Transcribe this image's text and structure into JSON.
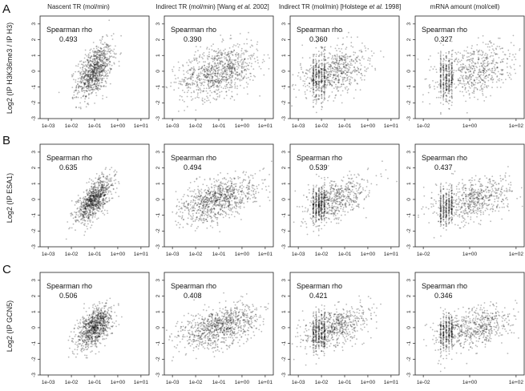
{
  "figure": {
    "column_titles": [
      "Nascent TR (mol/min)",
      "Indirect TR (mol/min) [Wang et al. 2002]",
      "Indirect TR (mol/min) [Holstege et al. 1998]",
      "mRNA amount (mol/cell)"
    ],
    "row_letters": [
      "A",
      "B",
      "C"
    ],
    "row_ylabels": [
      "Log2 (IP H3K36me3 / IP H3)",
      "Log2 (IP ESA1)",
      "Log2 (IP GCN5)"
    ],
    "annotation_label": "Spearman rho"
  },
  "chart_data": [
    {
      "type": "scatter",
      "row": "A",
      "column": "Nascent TR (mol/min)",
      "ylabel": "Log2 (IP H3K36me3 / IP H3)",
      "x_scale": "log",
      "x_ticks": [
        "1e-03",
        "1e-02",
        "1e-01",
        "1e+00",
        "1e+01"
      ],
      "ylim": [
        -3,
        3.5
      ],
      "y_ticks": [
        -3,
        -2,
        -1,
        0,
        1,
        2,
        3
      ],
      "annotation": "Spearman rho",
      "spearman_rho": "0.493"
    },
    {
      "type": "scatter",
      "row": "A",
      "column": "Indirect TR (mol/min) [Wang et al. 2002]",
      "x_scale": "log",
      "x_ticks": [
        "1e-03",
        "1e-02",
        "1e-01",
        "1e+00",
        "1e+01"
      ],
      "ylim": [
        -3,
        3.5
      ],
      "y_ticks": [
        -3,
        -2,
        -1,
        0,
        1,
        2,
        3
      ],
      "annotation": "Spearman rho",
      "spearman_rho": "0.390"
    },
    {
      "type": "scatter",
      "row": "A",
      "column": "Indirect TR (mol/min) [Holstege et al. 1998]",
      "x_scale": "log",
      "x_ticks": [
        "1e-03",
        "1e-02",
        "1e-01",
        "1e+00",
        "1e+01"
      ],
      "ylim": [
        -3,
        3.5
      ],
      "y_ticks": [
        -3,
        -2,
        -1,
        0,
        1,
        2,
        3
      ],
      "annotation": "Spearman rho",
      "spearman_rho": "0.360"
    },
    {
      "type": "scatter",
      "row": "A",
      "column": "mRNA amount (mol/cell)",
      "x_scale": "log",
      "x_ticks": [
        "1e-02",
        "1e+00",
        "1e+02"
      ],
      "ylim": [
        -3,
        3.5
      ],
      "y_ticks": [
        -3,
        -2,
        -1,
        0,
        1,
        2,
        3
      ],
      "annotation": "Spearman rho",
      "spearman_rho": "0.327"
    },
    {
      "type": "scatter",
      "row": "B",
      "column": "Nascent TR (mol/min)",
      "ylabel": "Log2 (IP ESA1)",
      "x_scale": "log",
      "x_ticks": [
        "1e-03",
        "1e-02",
        "1e-01",
        "1e+00",
        "1e+01"
      ],
      "ylim": [
        -3,
        3.5
      ],
      "y_ticks": [
        -3,
        -2,
        -1,
        0,
        1,
        2,
        3
      ],
      "annotation": "Spearman rho",
      "spearman_rho": "0.635"
    },
    {
      "type": "scatter",
      "row": "B",
      "column": "Indirect TR (mol/min) [Wang et al. 2002]",
      "x_scale": "log",
      "x_ticks": [
        "1e-03",
        "1e-02",
        "1e-01",
        "1e+00",
        "1e+01"
      ],
      "ylim": [
        -3,
        3.5
      ],
      "y_ticks": [
        -3,
        -2,
        -1,
        0,
        1,
        2,
        3
      ],
      "annotation": "Spearman rho",
      "spearman_rho": "0.494"
    },
    {
      "type": "scatter",
      "row": "B",
      "column": "Indirect TR (mol/min) [Holstege et al. 1998]",
      "x_scale": "log",
      "x_ticks": [
        "1e-03",
        "1e-02",
        "1e-01",
        "1e+00",
        "1e+01"
      ],
      "ylim": [
        -3,
        3.5
      ],
      "y_ticks": [
        -3,
        -2,
        -1,
        0,
        1,
        2,
        3
      ],
      "annotation": "Spearman rho",
      "spearman_rho": "0.539"
    },
    {
      "type": "scatter",
      "row": "B",
      "column": "mRNA amount (mol/cell)",
      "x_scale": "log",
      "x_ticks": [
        "1e-02",
        "1e+00",
        "1e+02"
      ],
      "ylim": [
        -3,
        3.5
      ],
      "y_ticks": [
        -3,
        -2,
        -1,
        0,
        1,
        2,
        3
      ],
      "annotation": "Spearman rho",
      "spearman_rho": "0.437"
    },
    {
      "type": "scatter",
      "row": "C",
      "column": "Nascent TR (mol/min)",
      "ylabel": "Log2 (IP GCN5)",
      "x_scale": "log",
      "x_ticks": [
        "1e-03",
        "1e-02",
        "1e-01",
        "1e+00",
        "1e+01"
      ],
      "ylim": [
        -3,
        3.5
      ],
      "y_ticks": [
        -3,
        -2,
        -1,
        0,
        1,
        2,
        3
      ],
      "annotation": "Spearman rho",
      "spearman_rho": "0.506"
    },
    {
      "type": "scatter",
      "row": "C",
      "column": "Indirect TR (mol/min) [Wang et al. 2002]",
      "x_scale": "log",
      "x_ticks": [
        "1e-03",
        "1e-02",
        "1e-01",
        "1e+00",
        "1e+01"
      ],
      "ylim": [
        -3,
        3.5
      ],
      "y_ticks": [
        -3,
        -2,
        -1,
        0,
        1,
        2,
        3
      ],
      "annotation": "Spearman rho",
      "spearman_rho": "0.408"
    },
    {
      "type": "scatter",
      "row": "C",
      "column": "Indirect TR (mol/min) [Holstege et al. 1998]",
      "x_scale": "log",
      "x_ticks": [
        "1e-03",
        "1e-02",
        "1e-01",
        "1e+00",
        "1e+01"
      ],
      "ylim": [
        -3,
        3.5
      ],
      "y_ticks": [
        -3,
        -2,
        -1,
        0,
        1,
        2,
        3
      ],
      "annotation": "Spearman rho",
      "spearman_rho": "0.421"
    },
    {
      "type": "scatter",
      "row": "C",
      "column": "mRNA amount (mol/cell)",
      "x_scale": "log",
      "x_ticks": [
        "1e-02",
        "1e+00",
        "1e+02"
      ],
      "ylim": [
        -3,
        3.5
      ],
      "y_ticks": [
        -3,
        -2,
        -1,
        0,
        1,
        2,
        3
      ],
      "annotation": "Spearman rho",
      "spearman_rho": "0.346"
    }
  ]
}
